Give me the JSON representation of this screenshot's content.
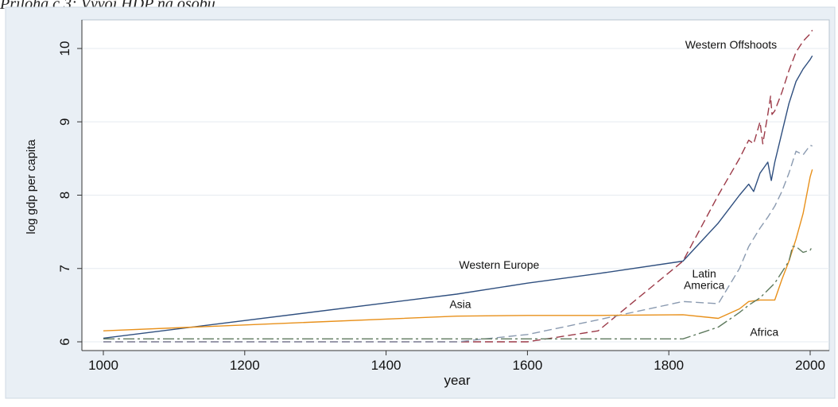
{
  "caption": "Príloha č.3: Vývoj HDP na osobu",
  "chart_data": {
    "type": "line",
    "title": "",
    "xlabel": "year",
    "ylabel": "log gdp per capita",
    "xlim": [
      1000,
      2010
    ],
    "ylim": [
      5.9,
      10.4
    ],
    "xticks": [
      1000,
      1200,
      1400,
      1600,
      1800,
      2000
    ],
    "yticks": [
      6,
      7,
      8,
      9,
      10
    ],
    "grid": "horizontal",
    "legend": "none (inline labels)",
    "series": [
      {
        "name": "Western Europe",
        "color": "#2f4f7f",
        "dash": "",
        "points": [
          [
            1000,
            6.05
          ],
          [
            1500,
            6.65
          ],
          [
            1600,
            6.8
          ],
          [
            1700,
            6.93
          ],
          [
            1820,
            7.1
          ],
          [
            1870,
            7.62
          ],
          [
            1900,
            8.0
          ],
          [
            1913,
            8.15
          ],
          [
            1920,
            8.05
          ],
          [
            1929,
            8.3
          ],
          [
            1935,
            8.38
          ],
          [
            1940,
            8.45
          ],
          [
            1945,
            8.2
          ],
          [
            1950,
            8.45
          ],
          [
            1960,
            8.85
          ],
          [
            1970,
            9.25
          ],
          [
            1980,
            9.55
          ],
          [
            1990,
            9.72
          ],
          [
            2000,
            9.85
          ],
          [
            2003,
            9.9
          ]
        ]
      },
      {
        "name": "Western Offshoots",
        "color": "#9c3a48",
        "dash": "10,5",
        "points": [
          [
            1000,
            6.0
          ],
          [
            1500,
            6.0
          ],
          [
            1600,
            6.0
          ],
          [
            1700,
            6.15
          ],
          [
            1820,
            7.1
          ],
          [
            1870,
            8.0
          ],
          [
            1900,
            8.5
          ],
          [
            1913,
            8.75
          ],
          [
            1920,
            8.7
          ],
          [
            1929,
            9.0
          ],
          [
            1933,
            8.7
          ],
          [
            1940,
            9.1
          ],
          [
            1944,
            9.35
          ],
          [
            1946,
            9.1
          ],
          [
            1950,
            9.15
          ],
          [
            1960,
            9.4
          ],
          [
            1970,
            9.7
          ],
          [
            1980,
            9.95
          ],
          [
            1990,
            10.1
          ],
          [
            2000,
            10.2
          ],
          [
            2003,
            10.25
          ]
        ]
      },
      {
        "name": "Latin America",
        "color": "#8a9ab0",
        "dash": "10,5",
        "points": [
          [
            1000,
            6.0
          ],
          [
            1500,
            6.0
          ],
          [
            1600,
            6.1
          ],
          [
            1700,
            6.3
          ],
          [
            1820,
            6.55
          ],
          [
            1870,
            6.52
          ],
          [
            1900,
            7.0
          ],
          [
            1913,
            7.3
          ],
          [
            1929,
            7.55
          ],
          [
            1940,
            7.7
          ],
          [
            1950,
            7.85
          ],
          [
            1960,
            8.05
          ],
          [
            1970,
            8.3
          ],
          [
            1980,
            8.6
          ],
          [
            1990,
            8.55
          ],
          [
            2000,
            8.68
          ],
          [
            2003,
            8.67
          ]
        ]
      },
      {
        "name": "Asia",
        "color": "#e8901a",
        "dash": "",
        "points": [
          [
            1000,
            6.15
          ],
          [
            1500,
            6.35
          ],
          [
            1600,
            6.36
          ],
          [
            1700,
            6.36
          ],
          [
            1820,
            6.37
          ],
          [
            1870,
            6.32
          ],
          [
            1900,
            6.45
          ],
          [
            1913,
            6.55
          ],
          [
            1929,
            6.57
          ],
          [
            1950,
            6.57
          ],
          [
            1960,
            6.85
          ],
          [
            1970,
            7.1
          ],
          [
            1980,
            7.4
          ],
          [
            1990,
            7.75
          ],
          [
            2000,
            8.25
          ],
          [
            2003,
            8.35
          ]
        ]
      },
      {
        "name": "Africa",
        "color": "#5e7a5e",
        "dash": "14,4,3,4",
        "points": [
          [
            1000,
            6.04
          ],
          [
            1500,
            6.04
          ],
          [
            1600,
            6.04
          ],
          [
            1700,
            6.04
          ],
          [
            1820,
            6.04
          ],
          [
            1870,
            6.2
          ],
          [
            1900,
            6.4
          ],
          [
            1913,
            6.5
          ],
          [
            1929,
            6.6
          ],
          [
            1950,
            6.8
          ],
          [
            1960,
            6.95
          ],
          [
            1970,
            7.1
          ],
          [
            1975,
            7.3
          ],
          [
            1980,
            7.3
          ],
          [
            1990,
            7.22
          ],
          [
            2000,
            7.25
          ],
          [
            2003,
            7.3
          ]
        ]
      }
    ],
    "annotations": [
      {
        "text": "Western Offshoots",
        "x": 1888,
        "y": 10.0
      },
      {
        "text": "Western Europe",
        "x": 1560,
        "y": 7.0
      },
      {
        "text": "Latin",
        "x": 1850,
        "y": 6.88
      },
      {
        "text": "America",
        "x": 1850,
        "y": 6.72
      },
      {
        "text": "Asia",
        "x": 1505,
        "y": 6.46
      },
      {
        "text": "Africa",
        "x": 1935,
        "y": 6.08
      }
    ]
  }
}
